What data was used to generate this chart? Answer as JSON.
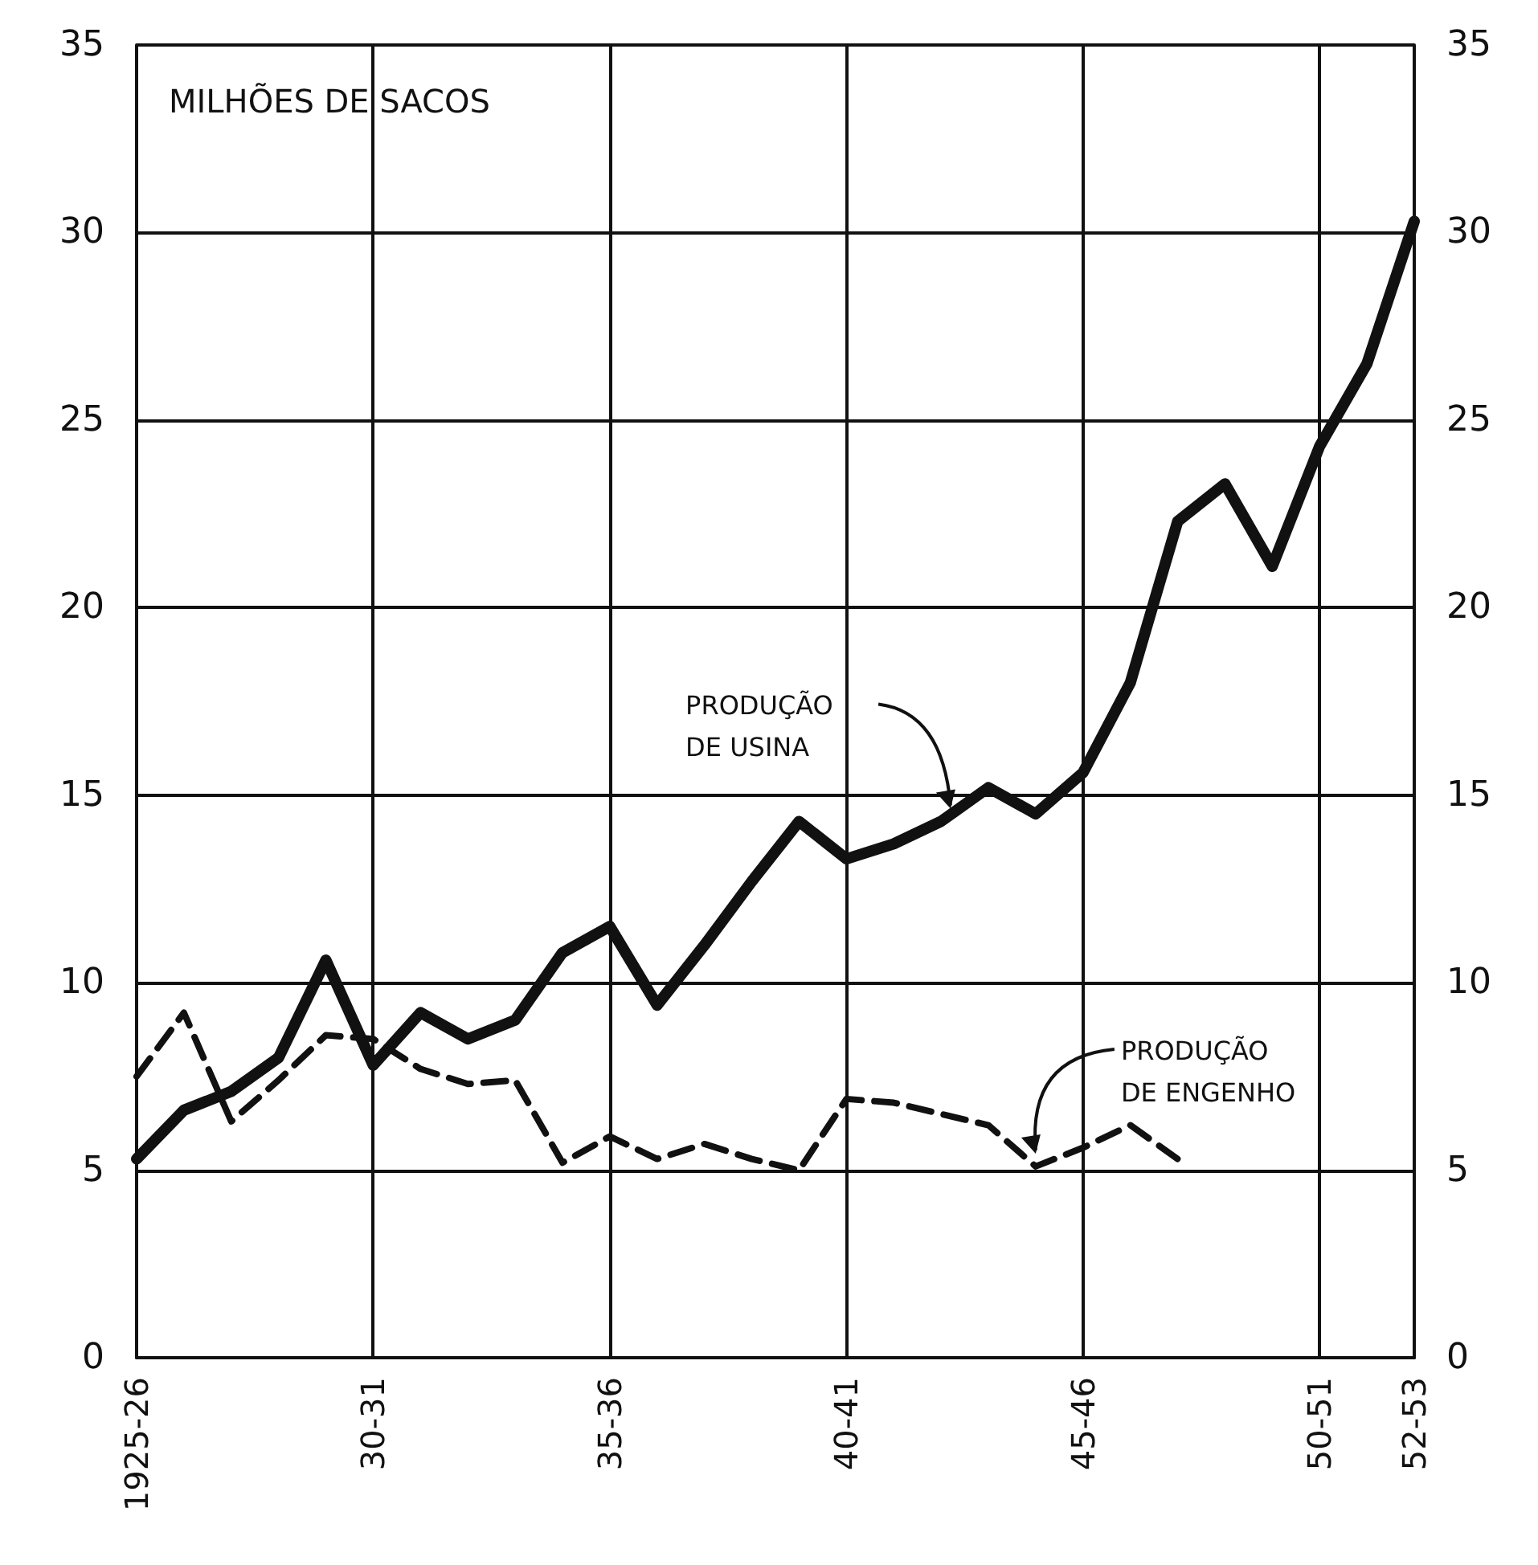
{
  "chart_data": {
    "type": "line",
    "ylabel": "MILHÕES DE SACOS",
    "categories": [
      "1925-26",
      null,
      null,
      null,
      null,
      "30-31",
      null,
      null,
      null,
      null,
      "35-36",
      null,
      null,
      null,
      null,
      "40-41",
      null,
      null,
      null,
      null,
      "45-46",
      null,
      null,
      null,
      null,
      "50-51",
      null,
      "52-53"
    ],
    "series": [
      {
        "name": "PRODUÇÃO DE USINA",
        "color": "#111111",
        "line_style": "solid",
        "values": [
          5.3,
          6.6,
          7.1,
          8.0,
          10.6,
          7.8,
          9.2,
          8.5,
          9.0,
          10.8,
          11.5,
          9.4,
          11.0,
          12.7,
          14.3,
          13.3,
          13.7,
          14.3,
          15.2,
          14.5,
          15.6,
          18.0,
          22.3,
          23.3,
          21.1,
          24.3,
          26.5,
          30.3
        ]
      },
      {
        "name": "PRODUÇÃO DE ENGENHO",
        "color": "#111111",
        "line_style": "dashed",
        "values": [
          7.5,
          9.2,
          6.3,
          7.4,
          8.6,
          8.5,
          7.7,
          7.3,
          7.4,
          5.2,
          5.9,
          5.3,
          5.7,
          5.3,
          5.0,
          6.9,
          6.8,
          6.5,
          6.2,
          5.1,
          5.6,
          6.2,
          5.3,
          null,
          null,
          null,
          null,
          null
        ]
      }
    ],
    "ylim": [
      0,
      35
    ],
    "yticks": [
      0,
      5,
      10,
      15,
      20,
      25,
      30,
      35
    ],
    "y2lim": [
      0,
      35
    ],
    "y2ticks": [
      0,
      5,
      10,
      15,
      20,
      25,
      30,
      35
    ],
    "grid": true,
    "marker": "none",
    "legend": false
  }
}
